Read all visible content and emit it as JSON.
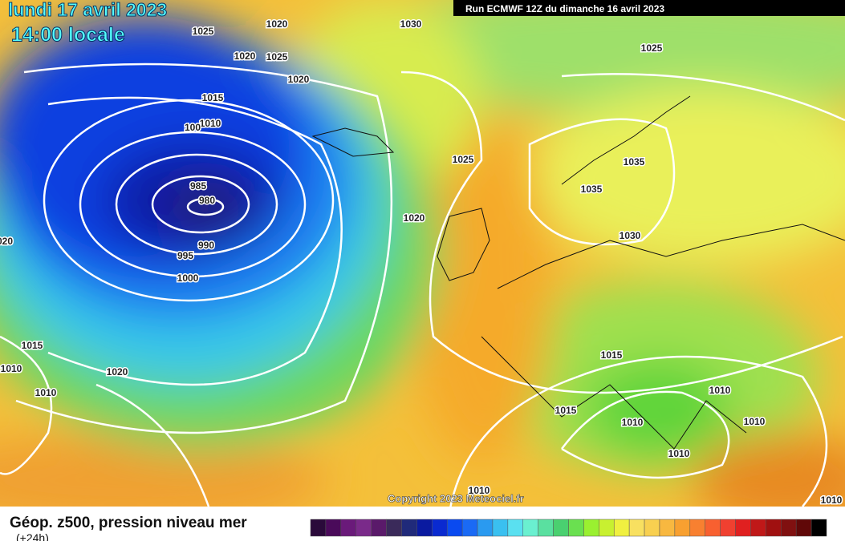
{
  "header": {
    "date": "lundi 17 avril 2023",
    "time": "14:00 locale",
    "run": "Run ECMWF 12Z du dimanche 16 avril 2023"
  },
  "isobars": [
    "1025",
    "1020",
    "1030",
    "1020",
    "1025",
    "1020",
    "1015",
    "1010",
    "100",
    "985",
    "980",
    "990",
    "995",
    "1000",
    "020",
    "1015",
    "1010",
    "1010",
    "1020",
    "1025",
    "1020",
    "1025",
    "1035",
    "1035",
    "1030",
    "1015",
    "1015",
    "1010",
    "1010",
    "1010",
    "1010",
    "1010",
    "1010"
  ],
  "copyright": "Copyright 2023 Meteociel.fr",
  "footer": {
    "title": "Géop. z500, pression niveau mer",
    "subtitle": "(+24h)"
  }
}
